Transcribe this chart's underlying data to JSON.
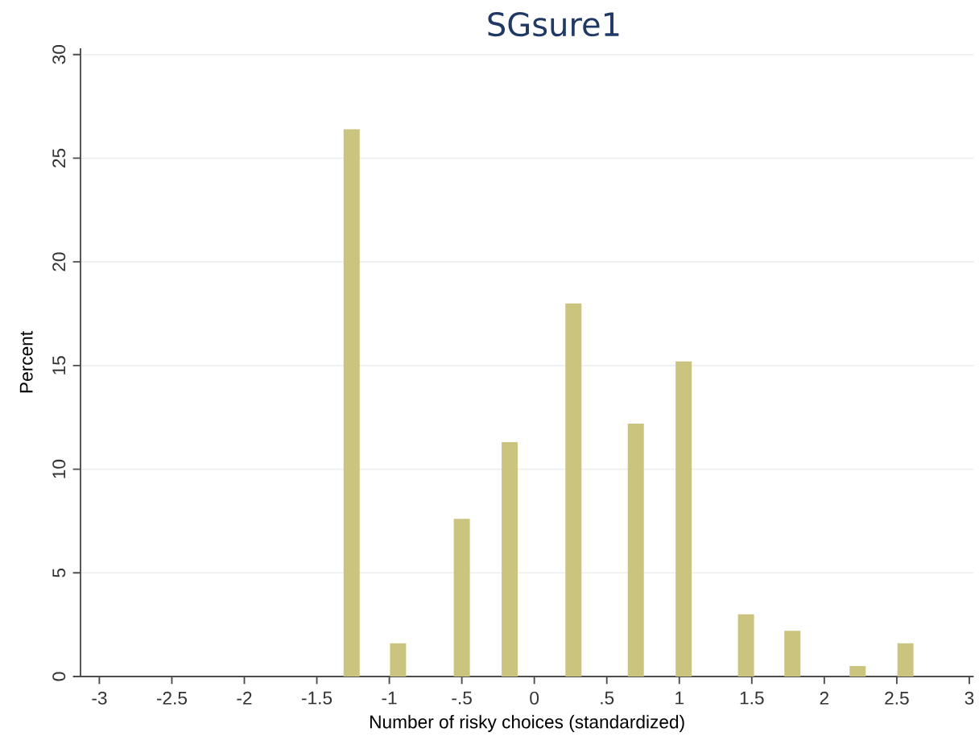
{
  "chart_data": {
    "type": "bar",
    "title": "SGsure1",
    "xlabel": "Number of risky choices (standardized)",
    "ylabel": "Percent",
    "x": [
      -1.26,
      -0.94,
      -0.5,
      -0.17,
      0.27,
      0.7,
      1.03,
      1.46,
      1.78,
      2.23,
      2.56
    ],
    "values": [
      26.4,
      1.6,
      7.6,
      11.3,
      18.0,
      12.2,
      15.2,
      3.0,
      2.2,
      0.5,
      1.6
    ],
    "color": "#cbc47e",
    "xlim": [
      -3.13,
      3.03
    ],
    "xticks": [
      -3,
      {
        "value": -2.5,
        "label": "-2.5"
      },
      -2,
      {
        "value": -1.5,
        "label": "-1.5"
      },
      -1,
      {
        "value": -0.5,
        "label": "-.5"
      },
      0,
      {
        "value": 0.5,
        "label": ".5"
      },
      1,
      {
        "value": 1.5,
        "label": "1.5"
      },
      2,
      {
        "value": 2.5,
        "label": "2.5"
      },
      3
    ],
    "ylim": [
      0,
      30.3
    ],
    "yticks": [
      0,
      5,
      10,
      15,
      20,
      25,
      30
    ],
    "grid": "y"
  }
}
